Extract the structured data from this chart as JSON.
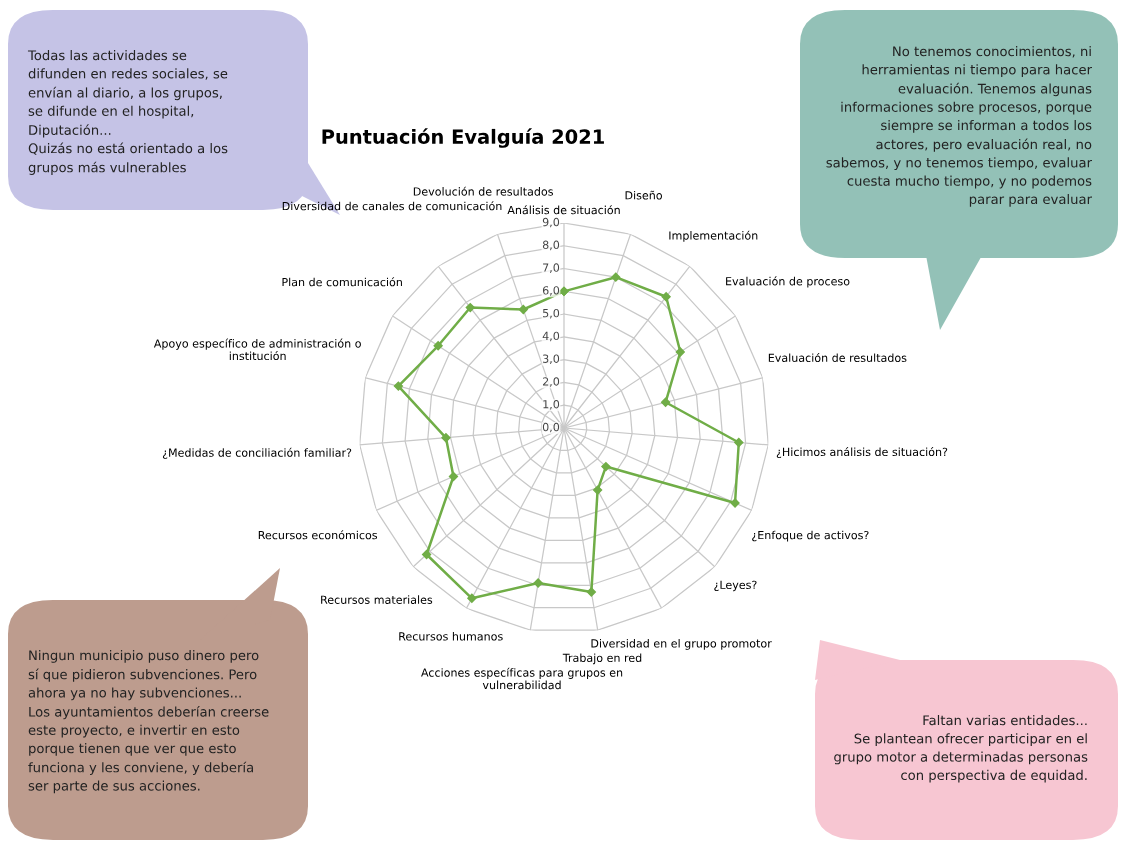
{
  "chart_data": {
    "type": "radar",
    "title": "Puntuación Evalguía 2021",
    "categories": [
      "Análisis de situación",
      "Diseño",
      "Implementación",
      "Evaluación de proceso",
      "Evaluación de resultados",
      "¿Hicimos análisis de situación?",
      "¿Enfoque de activos?",
      "¿Leyes?",
      "Diversidad en el grupo promotor",
      "Trabajo en red",
      "Acciones específicas para grupos en\nvulnerabilidad",
      "Recursos humanos",
      "Recursos materiales",
      "Recursos económicos",
      "¿Medidas de conciliación familiar?",
      "Apoyo específico de administración o\ninstitución",
      "Plan de comunicación",
      "Diversidad de canales de comunicación",
      "Devolución de resultados"
    ],
    "series": [
      {
        "color": "#70ad47",
        "values": [
          6.0,
          7.0,
          7.3,
          6.1,
          4.6,
          7.7,
          8.2,
          2.5,
          3.1,
          7.3,
          6.9,
          8.5,
          8.2,
          5.3,
          5.2,
          7.5,
          6.6,
          6.7,
          5.5
        ]
      }
    ],
    "ylim": [
      0,
      9
    ],
    "yticks": [
      {
        "value": 0,
        "label": "0,0"
      },
      {
        "value": 1,
        "label": "1,0"
      },
      {
        "value": 2,
        "label": "2,0"
      },
      {
        "value": 3,
        "label": "3,0"
      },
      {
        "value": 4,
        "label": "4,0"
      },
      {
        "value": 5,
        "label": "5,0"
      },
      {
        "value": 6,
        "label": "6,0"
      },
      {
        "value": 7,
        "label": "7,0"
      },
      {
        "value": 8,
        "label": "8,0"
      },
      {
        "value": 9,
        "label": "9,0"
      }
    ],
    "marker": "diamond",
    "grid": true,
    "annotations": [
      "Todas las actividades se\ndifunden en redes sociales, se\nenvían al diario, a los grupos,\nse difunde en el hospital,\nDiputación...\nQuizás no está orientado a los\ngrupos más vulnerables",
      "No tenemos conocimientos, ni\nherramientas ni tiempo para hacer\nevaluación. Tenemos algunas\ninformaciones sobre procesos, porque\nsiempre se informan a todos los\nactores, pero evaluación real, no\nsabemos, y no tenemos tiempo, evaluar\ncuesta mucho tiempo, y no podemos\nparar para evaluar",
      "Ningun municipio puso dinero pero\nsí que pidieron subvenciones. Pero\nahora ya no hay subvenciones...\nLos ayuntamientos deberían creerse\neste proyecto, e invertir en esto\nporque tienen que ver que esto\nfunciona y les conviene, y debería\nser parte de sus acciones.",
      "Faltan varias entidades...\nSe plantean ofrecer participar en el\ngrupo motor a determinadas personas\ncon perspectiva de equidad."
    ]
  }
}
